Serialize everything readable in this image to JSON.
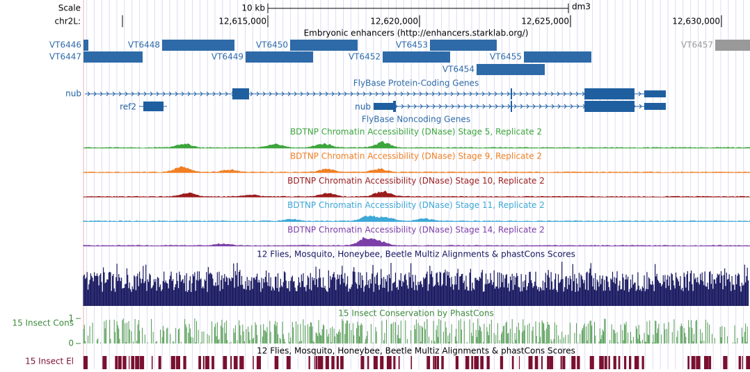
{
  "scale": {
    "label": "Scale",
    "size": "10 kb",
    "assembly": "dm3"
  },
  "position": {
    "chrom": "chr2L:",
    "ticks": [
      "12,615,000",
      "12,620,000",
      "12,625,000",
      "12,630,000"
    ]
  },
  "enhancers": {
    "title": "Embryonic enhancers (http://enhancers.starklab.org/)",
    "labels": [
      "VT6446",
      "VT6447",
      "VT6448",
      "VT6449",
      "VT6450",
      "VT6452",
      "VT6453",
      "VT6454",
      "VT6455",
      "VT6457"
    ]
  },
  "coding_genes": {
    "title": "FlyBase Protein-Coding Genes",
    "labels": [
      "nub",
      "ref2",
      "nub"
    ]
  },
  "noncoding_genes": {
    "title": "FlyBase Noncoding Genes"
  },
  "dnase_tracks": [
    {
      "title": "BDTNP Chromatin Accessibility (DNase) Stage 5, Replicate 2",
      "color": "#3ca53c"
    },
    {
      "title": "BDTNP Chromatin Accessibility (DNase) Stage 9, Replicate 2",
      "color": "#f07f23"
    },
    {
      "title": "BDTNP Chromatin Accessibility (DNase) Stage 10, Replicate 2",
      "color": "#9b1c1c"
    },
    {
      "title": "BDTNP Chromatin Accessibility (DNase) Stage 11, Replicate 2",
      "color": "#3ea8d6"
    },
    {
      "title": "BDTNP Chromatin Accessibility (DNase) Stage 14, Replicate 2",
      "color": "#7c3fa8"
    }
  ],
  "multiz": {
    "title": "12 Flies, Mosquito, Honeybee, Beetle Multiz Alignments & phastCons Scores"
  },
  "phastcons": {
    "title": "15 Insect Conservation by PhastCons",
    "label": "15 Insect Cons",
    "yticks": [
      0,
      1
    ]
  },
  "elements": {
    "title": "12 Flies, Mosquito, Honeybee, Beetle Multiz Alignments & phastCons Scores",
    "label": "15 Insect El"
  }
}
